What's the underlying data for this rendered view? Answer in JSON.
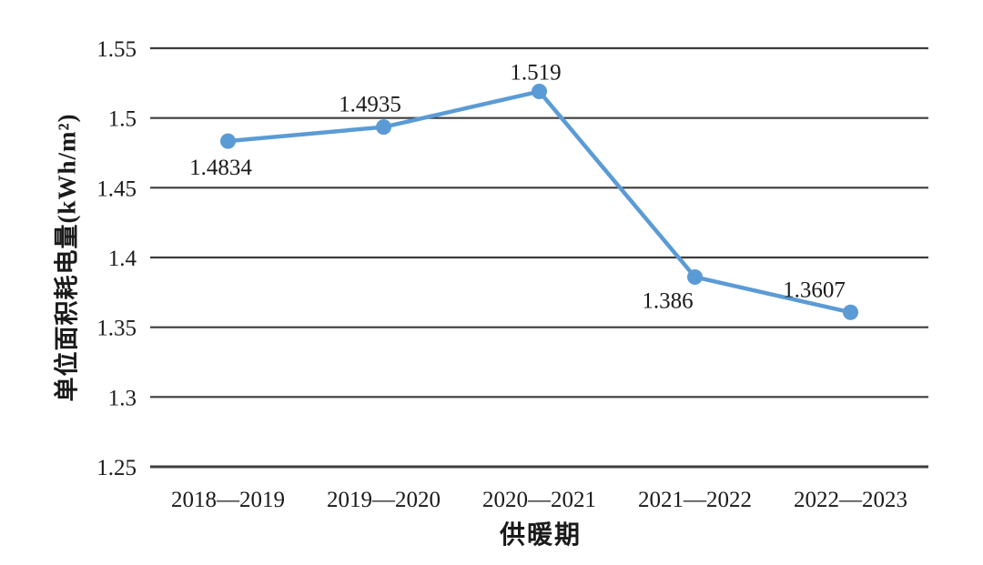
{
  "figure": {
    "background": "#ffffff"
  },
  "chart_data": {
    "type": "line",
    "title": "",
    "xlabel": "供暖期",
    "ylabel": "单位面积耗电量(kWh/m²)",
    "categories": [
      "2018—2019",
      "2019—2020",
      "2020—2021",
      "2021—2022",
      "2022—2023"
    ],
    "series": [
      {
        "values": [
          1.4834,
          1.4935,
          1.519,
          1.386,
          1.3607
        ],
        "value_labels": [
          "1.4834",
          "1.4935",
          "1.519",
          "1.386",
          "1.3607"
        ],
        "color": "#5B9BD5"
      }
    ],
    "ylim": [
      1.25,
      1.55
    ],
    "yticks": [
      1.25,
      1.3,
      1.35,
      1.4,
      1.45,
      1.5,
      1.55
    ],
    "ytick_labels": [
      "1.25",
      "1.3",
      "1.35",
      "1.4",
      "1.45",
      "1.5",
      "1.55"
    ],
    "grid": "horizontal",
    "legend": "none",
    "gridline_color": "#3d3d3d",
    "text_color": "#1a1a1a",
    "label_positions": [
      "below",
      "above",
      "above",
      "below",
      "above"
    ]
  }
}
